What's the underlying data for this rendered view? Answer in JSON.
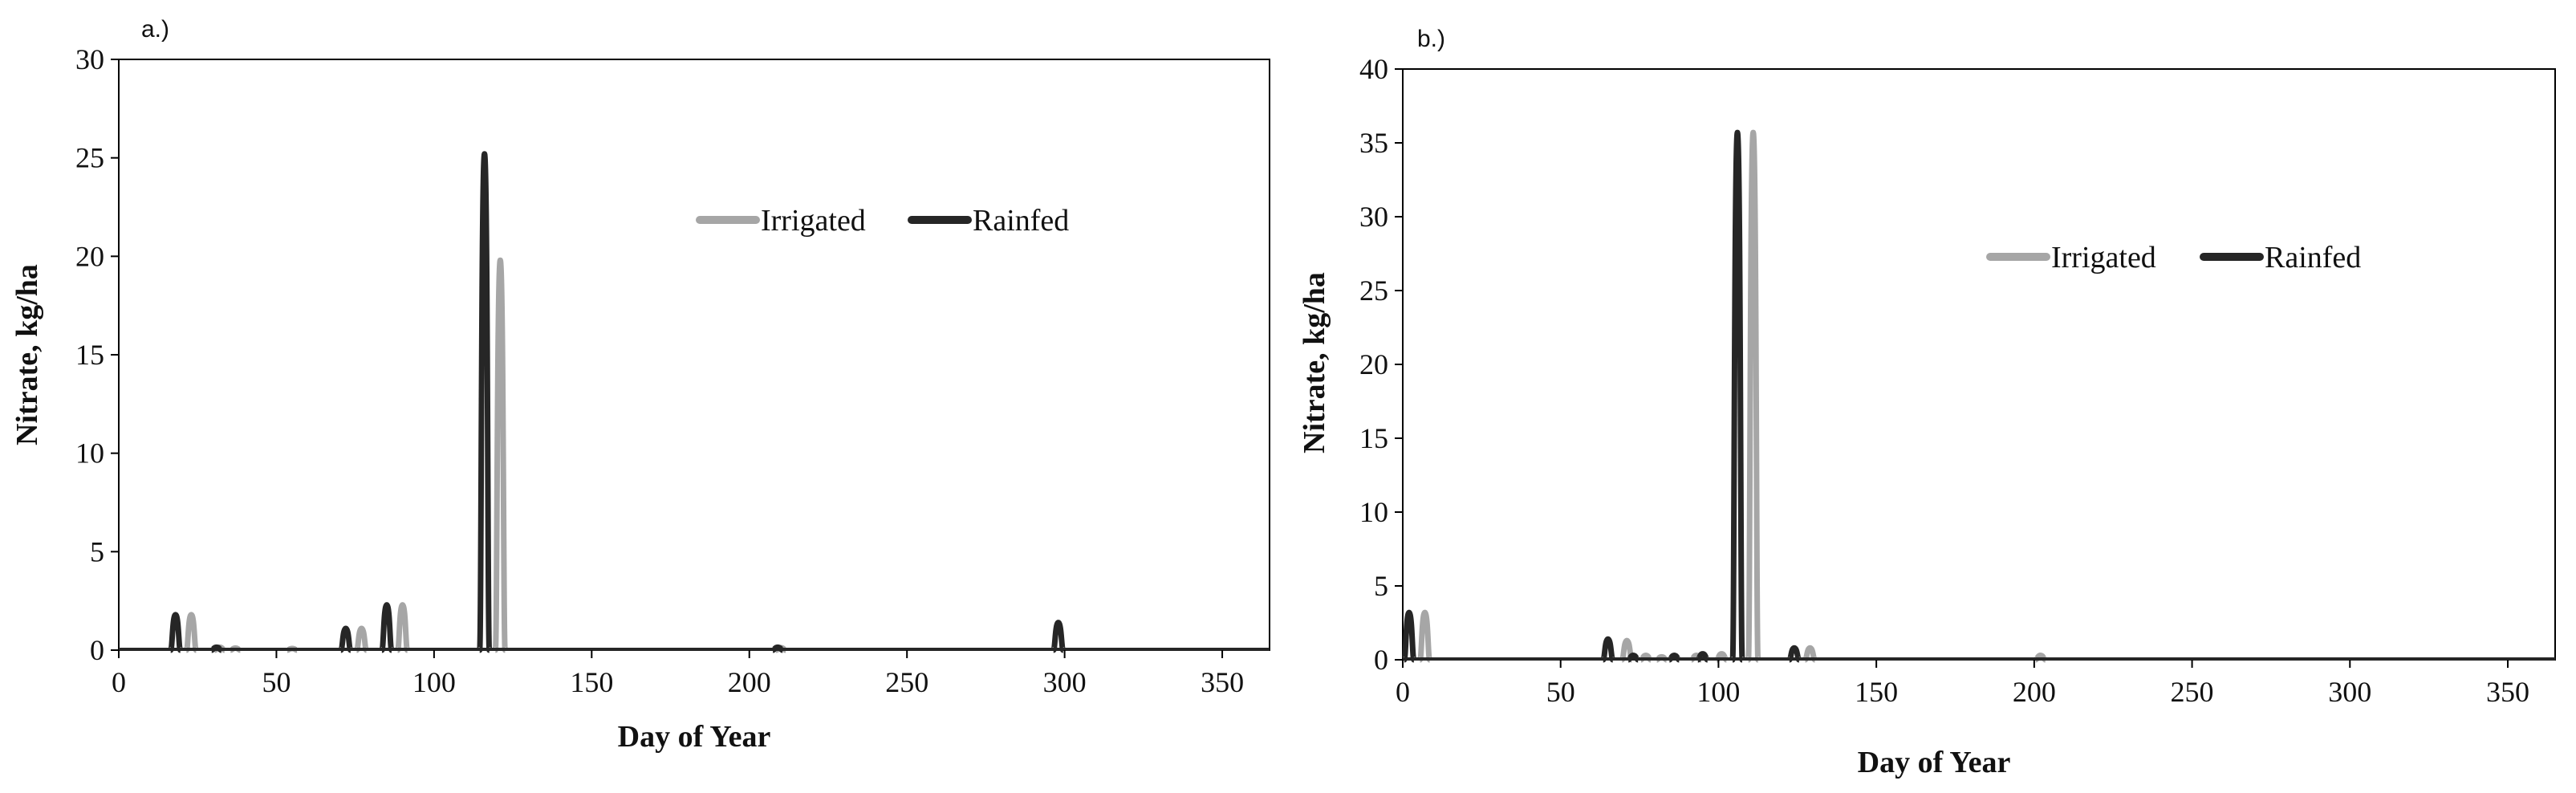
{
  "colors": {
    "irrigated": "#a6a6a6",
    "rainfed": "#262626",
    "axis": "#000000"
  },
  "chart_data": [
    {
      "type": "line",
      "panel_label": "a.)",
      "xlabel": "Day of Year",
      "ylabel": "Nitrate, kg/ha",
      "xlim": [
        0,
        365
      ],
      "ylim": [
        0,
        30
      ],
      "xticks": [
        0,
        50,
        100,
        150,
        200,
        250,
        300,
        350
      ],
      "yticks": [
        0,
        5,
        10,
        15,
        20,
        25,
        30
      ],
      "grid": false,
      "legend_position": "upper-right",
      "series": [
        {
          "name": "Irrigated",
          "color": "#a6a6a6",
          "peaks": [
            [
              23,
              1.8
            ],
            [
              32,
              0.15
            ],
            [
              37,
              0.1
            ],
            [
              55,
              0.08
            ],
            [
              77,
              1.1
            ],
            [
              90,
              2.3
            ],
            [
              121,
              19.8
            ],
            [
              210,
              0.12
            ]
          ]
        },
        {
          "name": "Rainfed",
          "color": "#262626",
          "peaks": [
            [
              18,
              1.8
            ],
            [
              31,
              0.15
            ],
            [
              72,
              1.1
            ],
            [
              85,
              2.3
            ],
            [
              116,
              25.2
            ],
            [
              209,
              0.15
            ],
            [
              298,
              1.4
            ]
          ]
        }
      ]
    },
    {
      "type": "line",
      "panel_label": "b.)",
      "xlabel": "Day of Year",
      "ylabel": "Nitrate, kg/ha",
      "xlim": [
        0,
        365
      ],
      "ylim": [
        0,
        40
      ],
      "xticks": [
        0,
        50,
        100,
        150,
        200,
        250,
        300,
        350
      ],
      "yticks": [
        0,
        5,
        10,
        15,
        20,
        25,
        30,
        35,
        40
      ],
      "grid": false,
      "legend_position": "upper-right",
      "series": [
        {
          "name": "Irrigated",
          "color": "#a6a6a6",
          "peaks": [
            [
              7,
              3.2
            ],
            [
              71,
              1.3
            ],
            [
              77,
              0.3
            ],
            [
              82,
              0.2
            ],
            [
              93,
              0.3
            ],
            [
              101,
              0.4
            ],
            [
              111,
              35.7
            ],
            [
              129,
              0.8
            ],
            [
              202,
              0.3
            ]
          ]
        },
        {
          "name": "Rainfed",
          "color": "#262626",
          "peaks": [
            [
              2,
              3.2
            ],
            [
              65,
              1.4
            ],
            [
              73,
              0.3
            ],
            [
              86,
              0.3
            ],
            [
              95,
              0.4
            ],
            [
              106,
              35.7
            ],
            [
              124,
              0.8
            ]
          ]
        }
      ]
    }
  ]
}
